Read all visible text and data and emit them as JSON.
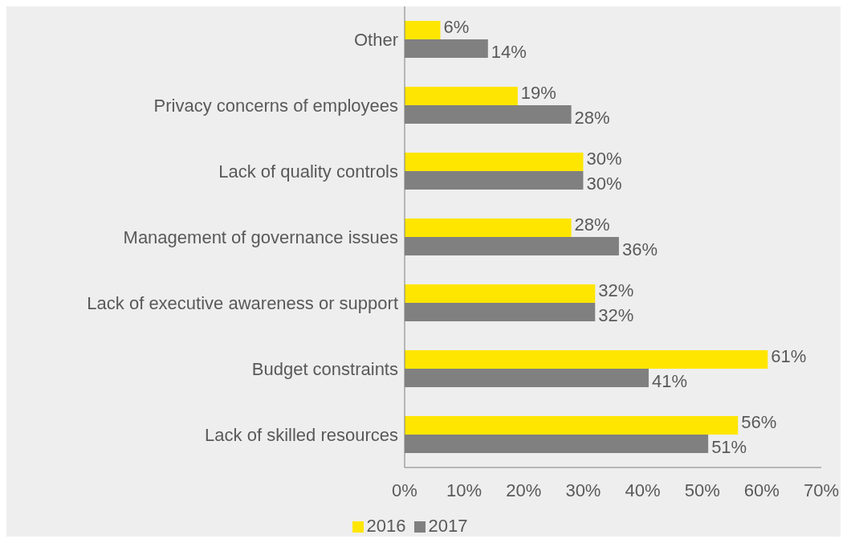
{
  "chart_data": {
    "type": "bar",
    "orientation": "horizontal",
    "categories": [
      "Other",
      "Privacy concerns of employees",
      "Lack of quality controls",
      "Management of governance issues",
      "Lack of executive awareness or support",
      "Budget constraints",
      "Lack of skilled resources"
    ],
    "series": [
      {
        "name": "2016",
        "color": "#ffe600",
        "values": [
          6,
          19,
          30,
          28,
          32,
          61,
          56
        ],
        "value_labels": [
          "6%",
          "19%",
          "30%",
          "28%",
          "32%",
          "61%",
          "56%"
        ]
      },
      {
        "name": "2017",
        "color": "#808080",
        "values": [
          14,
          28,
          30,
          36,
          32,
          41,
          51
        ],
        "value_labels": [
          "14%",
          "28%",
          "30%",
          "36%",
          "32%",
          "41%",
          "51%"
        ]
      }
    ],
    "xlim": [
      0,
      70
    ],
    "xticks": [
      {
        "value": 0,
        "label": "0%"
      },
      {
        "value": 10,
        "label": "10%"
      },
      {
        "value": 20,
        "label": "20%"
      },
      {
        "value": 30,
        "label": "30%"
      },
      {
        "value": 40,
        "label": "40%"
      },
      {
        "value": 50,
        "label": "50%"
      },
      {
        "value": 60,
        "label": "60%"
      },
      {
        "value": 70,
        "label": "70%"
      }
    ],
    "grid": false,
    "legend": "bottom"
  }
}
